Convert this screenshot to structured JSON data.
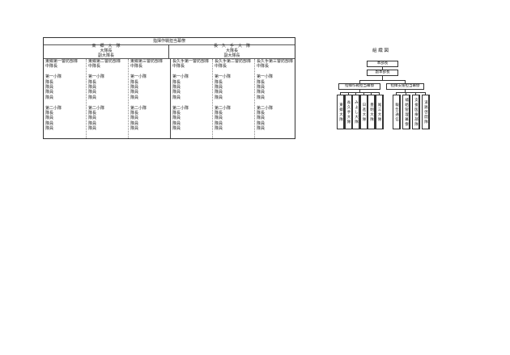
{
  "table": {
    "title": "指揮作戦担当幕僚",
    "battalions": [
      {
        "name": "東　郷　大　隊",
        "roles": "大隊長\n副大隊長"
      },
      {
        "name": "長　久　手　大　隊",
        "roles": "大隊長\n副大隊長"
      }
    ],
    "columns": [
      {
        "unit": "東郷第一警防部隊",
        "body": "中隊長\n\n第一小隊\n隊長\n隊員\n隊員\n隊員\n\n第二小隊\n隊長\n隊員\n隊員\n隊員"
      },
      {
        "unit": "東郷第二警防部隊",
        "body": "中隊長\n\n第一小隊\n隊長\n隊員\n隊員\n隊員\n\n第二小隊\n隊長\n隊員\n隊員\n隊員"
      },
      {
        "unit": "東郷第三警防部隊",
        "body": "中隊長\n\n第一小隊\n隊長\n隊員\n隊員\n隊員\n\n第二小隊\n隊長\n隊員\n隊員\n隊員"
      },
      {
        "unit": "長久手第一警防部隊",
        "body": "中隊長\n\n第一小隊\n隊長\n隊員\n隊員\n隊員\n\n第二小隊\n隊長\n隊員\n隊員\n隊員"
      },
      {
        "unit": "長久手第二警防部隊",
        "body": "中隊長\n\n第一小隊\n隊長\n隊員\n隊員\n隊員\n\n第二小隊\n隊長\n隊員\n隊員\n隊員"
      },
      {
        "unit": "長久手第三警防部隊",
        "body": "中隊長\n\n第一小隊\n隊長\n隊員\n隊員\n隊員\n\n第二小隊\n隊長\n隊員\n隊員\n隊員"
      }
    ]
  },
  "org": {
    "title": "組 織 図",
    "chief": "本部長",
    "deputy": "副本部長",
    "left_staff": "指揮作戦担当幕僚",
    "right_staff": "指揮支援担当幕僚",
    "left_units": [
      "東郷大隊",
      "長久手大隊",
      "みよし大隊",
      "日進大隊",
      "豊明大隊",
      "尾三大隊"
    ],
    "right_units": [
      "報告通信",
      "補給管理幕僚",
      "支援医療部隊",
      "道路啓開隊"
    ]
  }
}
